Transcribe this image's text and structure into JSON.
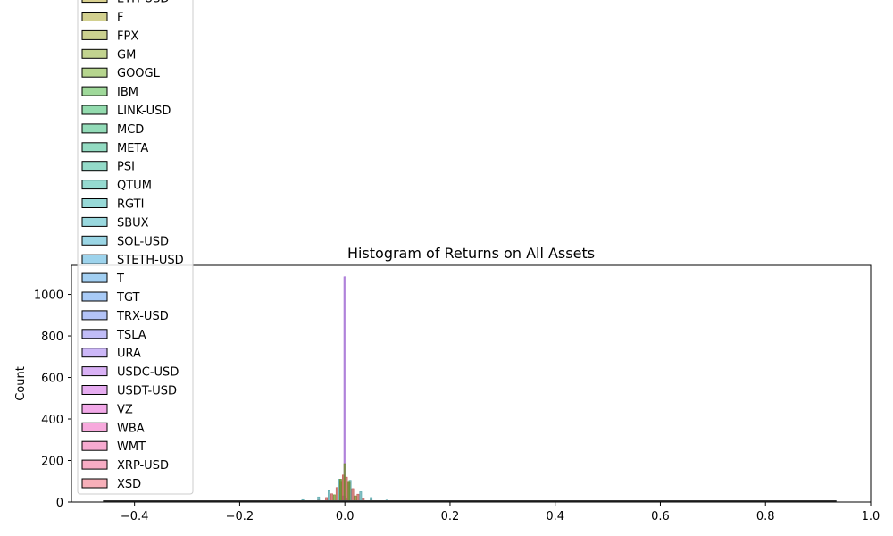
{
  "chart_data": {
    "type": "bar",
    "title": "Histogram of Returns on All Assets",
    "xlabel": "",
    "ylabel": "Count",
    "xlim": [
      -0.52,
      1.0
    ],
    "ylim": [
      0,
      1140
    ],
    "x_ticks": [
      -0.4,
      -0.2,
      0.0,
      0.2,
      0.4,
      0.6,
      0.8,
      1.0
    ],
    "x_tick_labels": [
      "−0.4",
      "−0.2",
      "0.0",
      "0.2",
      "0.4",
      "0.6",
      "0.8",
      "1.0"
    ],
    "y_ticks": [
      0,
      200,
      400,
      600,
      800,
      1000
    ],
    "y_tick_labels": [
      "0",
      "200",
      "400",
      "600",
      "800",
      "1000"
    ],
    "data_range": [
      -0.46,
      0.935
    ],
    "grid": false,
    "legend_position": "upper-left",
    "legend": [
      {
        "name": "ETH-USD",
        "color": "#d8d08f"
      },
      {
        "name": "F",
        "color": "#d2d08f"
      },
      {
        "name": "FPX",
        "color": "#cbd18f"
      },
      {
        "name": "GM",
        "color": "#c2d38f"
      },
      {
        "name": "GOOGL",
        "color": "#b6d58e"
      },
      {
        "name": "IBM",
        "color": "#9fd99a"
      },
      {
        "name": "LINK-USD",
        "color": "#93dbae"
      },
      {
        "name": "MCD",
        "color": "#93dbb8"
      },
      {
        "name": "META",
        "color": "#93dbc2"
      },
      {
        "name": "PSI",
        "color": "#94dbc9"
      },
      {
        "name": "QTUM",
        "color": "#95dad0"
      },
      {
        "name": "RGTI",
        "color": "#97d9d7"
      },
      {
        "name": "SBUX",
        "color": "#99d8de"
      },
      {
        "name": "SOL-USD",
        "color": "#9bd6e5"
      },
      {
        "name": "STETH-USD",
        "color": "#9dd3ec"
      },
      {
        "name": "T",
        "color": "#a2cff2"
      },
      {
        "name": "TGT",
        "color": "#a8caf6"
      },
      {
        "name": "TRX-USD",
        "color": "#b3c3f7"
      },
      {
        "name": "TSLA",
        "color": "#c0bcf7"
      },
      {
        "name": "URA",
        "color": "#ccb7f7"
      },
      {
        "name": "USDC-USD",
        "color": "#d9b1f5"
      },
      {
        "name": "USDT-USD",
        "color": "#e6acf0"
      },
      {
        "name": "VZ",
        "color": "#f2a9e8"
      },
      {
        "name": "WBA",
        "color": "#f7a9dc"
      },
      {
        "name": "WMT",
        "color": "#f7aad0"
      },
      {
        "name": "XRP-USD",
        "color": "#f7acc4"
      },
      {
        "name": "XSD",
        "color": "#f7afb9"
      }
    ],
    "series": [
      {
        "name": "USDT-USD",
        "color": "#9a5fd0",
        "x": [
          -0.002,
          0.0,
          0.002
        ],
        "values": [
          30,
          1085,
          20
        ]
      },
      {
        "name": "XSD",
        "color": "#c0504d",
        "x": [
          -0.07,
          -0.05,
          -0.035,
          -0.025,
          -0.015,
          -0.008,
          -0.003,
          0.003,
          0.008,
          0.015,
          0.025,
          0.035,
          0.05,
          0.07,
          0.1
        ],
        "values": [
          4,
          10,
          22,
          40,
          70,
          100,
          130,
          120,
          95,
          65,
          38,
          20,
          9,
          4,
          2
        ]
      },
      {
        "name": "SOL-USD",
        "color": "#4fa3a8",
        "x": [
          -0.12,
          -0.08,
          -0.05,
          -0.03,
          -0.01,
          0.01,
          0.03,
          0.05,
          0.08,
          0.12
        ],
        "values": [
          3,
          12,
          25,
          55,
          110,
          105,
          50,
          22,
          10,
          3
        ]
      },
      {
        "name": "ETH-USD",
        "color": "#6b8e23",
        "x": [
          -0.02,
          -0.008,
          0.0,
          0.008,
          0.02
        ],
        "values": [
          35,
          110,
          185,
          100,
          30
        ]
      }
    ]
  }
}
